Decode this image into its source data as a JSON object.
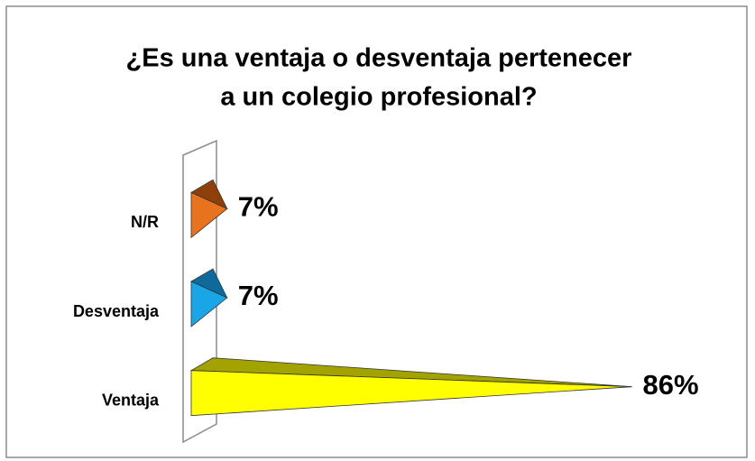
{
  "chart_data": {
    "type": "bar3d-pyramid",
    "title": [
      "¿Es una ventaja o desventaja pertenecer",
      "a un colegio profesional?"
    ],
    "categories": [
      "N/R",
      "Desventaja",
      "Ventaja"
    ],
    "values": [
      7,
      7,
      86
    ],
    "value_labels": [
      "7%",
      "7%",
      "86%"
    ],
    "colors": [
      "#e8731e",
      "#1aa6e6",
      "#ffff00"
    ],
    "shade_colors": [
      "#8f3f0a",
      "#0f6a9c",
      "#a3a300"
    ]
  }
}
